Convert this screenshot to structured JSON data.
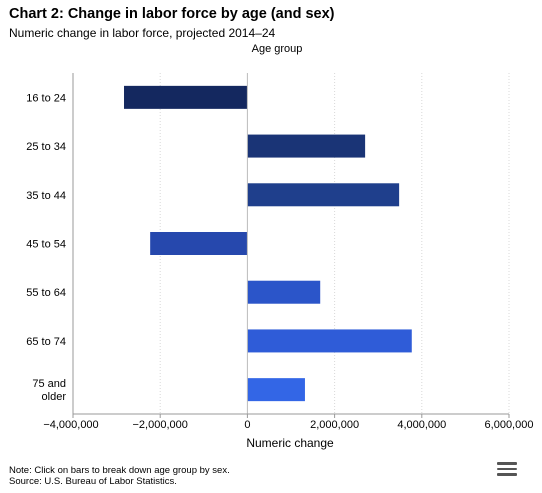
{
  "chart_data": {
    "type": "bar",
    "orientation": "horizontal",
    "title": "Chart 2: Change in labor force by age (and sex)",
    "subtitle": "Numeric change in labor force, projected 2014–24",
    "xlabel": "Numeric change",
    "ylabel": "Age group",
    "categories": [
      "16 to 24",
      "25 to 34",
      "35 to 44",
      "45 to 54",
      "55 to 64",
      "65 to 74",
      "75 and older"
    ],
    "category_lines": [
      [
        "16 to 24"
      ],
      [
        "25 to 34"
      ],
      [
        "35 to 44"
      ],
      [
        "45 to 54"
      ],
      [
        "55 to 64"
      ],
      [
        "65 to 74"
      ],
      [
        "75 and",
        "older"
      ]
    ],
    "values": [
      -2830000,
      2700000,
      3480000,
      -2230000,
      1670000,
      3770000,
      1320000
    ],
    "xlim": [
      -4000000,
      6000000
    ],
    "xticks": [
      -4000000,
      -2000000,
      0,
      2000000,
      4000000,
      6000000
    ],
    "xtick_labels": [
      "−4,000,000",
      "−2,000,000",
      "0",
      "2,000,000",
      "4,000,000",
      "6,000,000"
    ],
    "grid": true,
    "bar_colors": [
      "#14285f",
      "#1a3476",
      "#1f3f8c",
      "#2648ad",
      "#2b55c9",
      "#2f5cd8",
      "#3366e6"
    ]
  },
  "note": "Note: Click on bars to break down age group by sex.",
  "source": "Source: U.S. Bureau of Labor Statistics.",
  "menu_icon": "hamburger-menu-icon"
}
